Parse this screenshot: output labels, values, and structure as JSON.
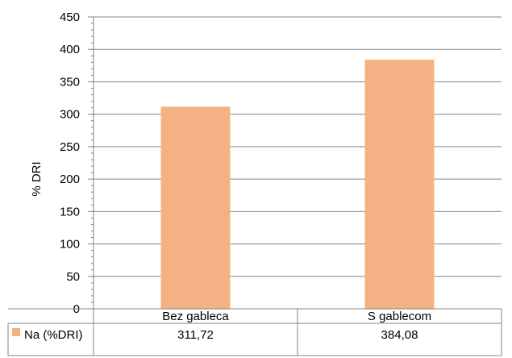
{
  "chart_data": {
    "type": "bar",
    "categories": [
      "Bez gableca",
      "S gablecom"
    ],
    "series": [
      {
        "name": "Na (%DRI)",
        "values": [
          311.72,
          384.08
        ],
        "value_labels": [
          "311,72",
          "384,08"
        ],
        "color": "#F4B183"
      }
    ],
    "ylabel": "% DRI",
    "xlabel": "",
    "title": "",
    "ylim": [
      0,
      450
    ],
    "yticks": [
      0,
      50,
      100,
      150,
      200,
      250,
      300,
      350,
      400,
      450
    ],
    "grid": true,
    "legend": "data-table"
  }
}
